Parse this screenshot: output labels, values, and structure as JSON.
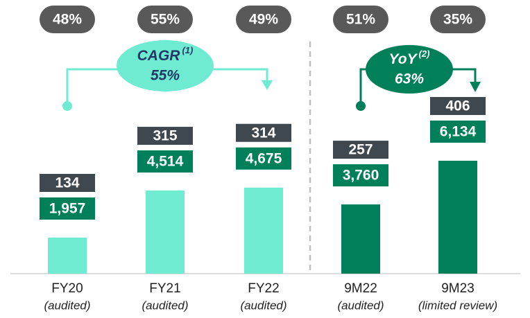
{
  "chart_data": {
    "type": "bar",
    "categories": [
      "FY20",
      "FY21",
      "FY22",
      "9M22",
      "9M23"
    ],
    "subtitles": [
      "(audited)",
      "(audited)",
      "(audited)",
      "(audited)",
      "(limited review)"
    ],
    "values": [
      1957,
      4514,
      4675,
      3760,
      6134
    ],
    "value_labels": [
      "1,957",
      "4,514",
      "4,675",
      "3,760",
      "6,134"
    ],
    "colors": [
      "#6eebd0",
      "#6eebd0",
      "#6eebd0",
      "#00805a",
      "#00805a"
    ],
    "counts": [
      134,
      315,
      314,
      257,
      406
    ],
    "shares": [
      48,
      55,
      49,
      51,
      35
    ],
    "share_labels": [
      "48%",
      "55%",
      "49%",
      "51%",
      "35%"
    ],
    "annotations": [
      {
        "label": "CAGR",
        "note": "(1)",
        "value": 55,
        "value_label": "55%"
      },
      {
        "label": "YoY",
        "note": "(2)",
        "value": 63,
        "value_label": "63%"
      }
    ]
  }
}
